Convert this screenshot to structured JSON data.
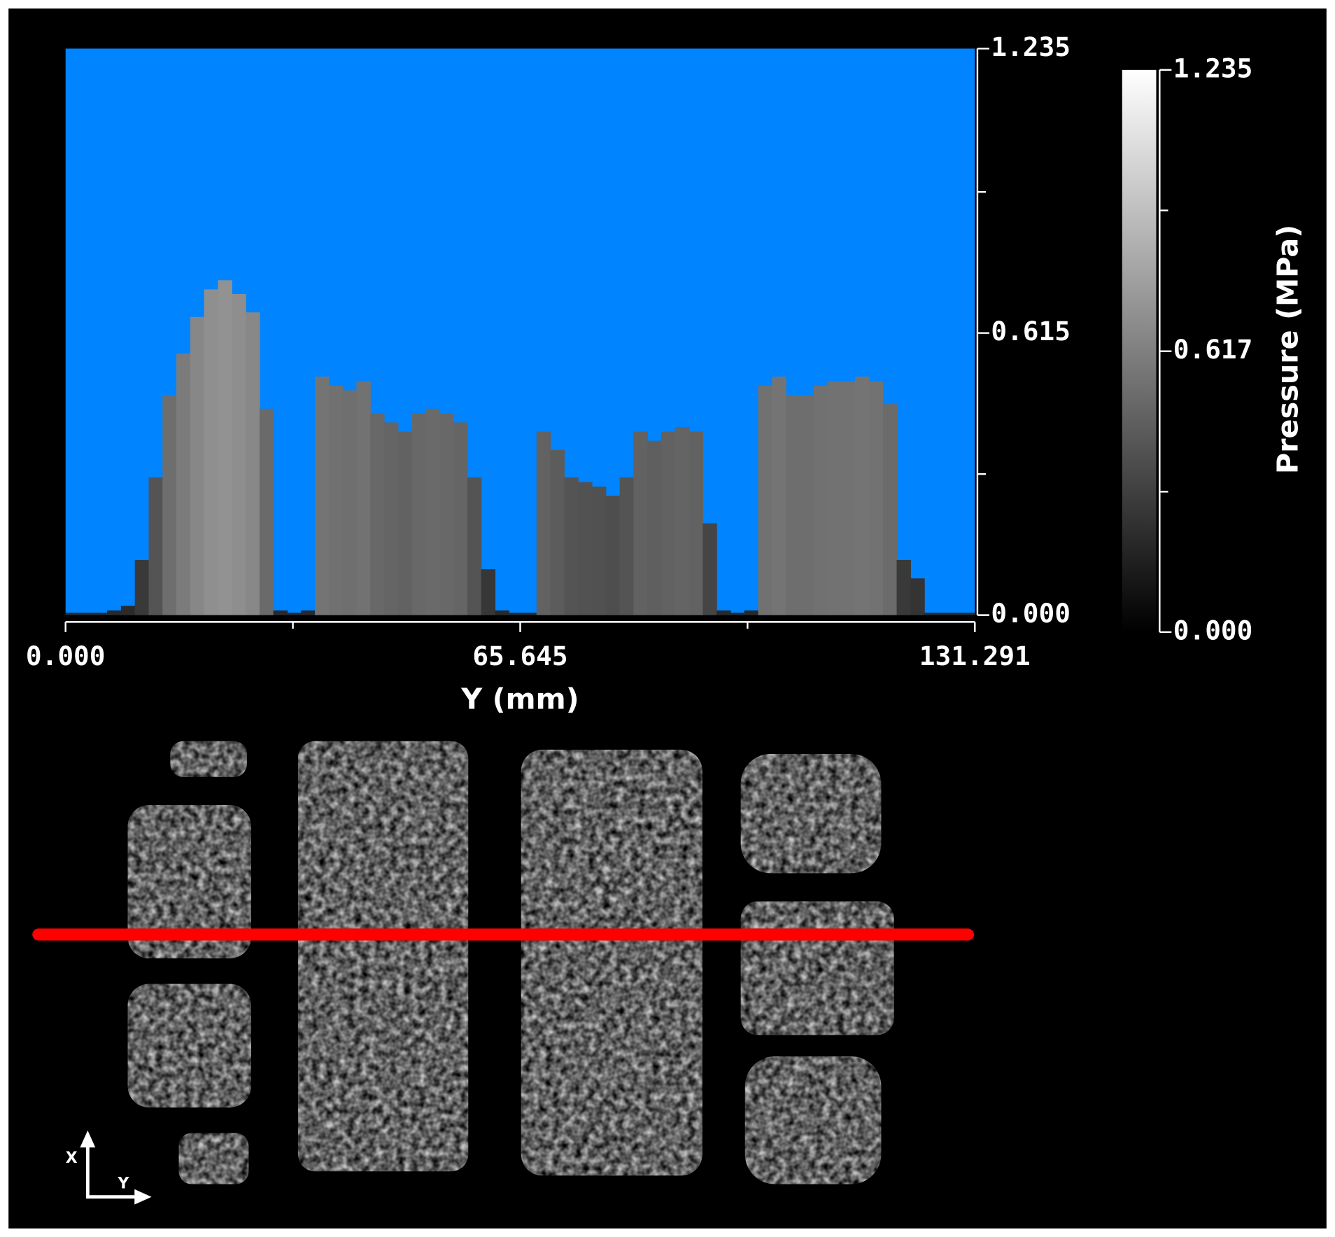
{
  "chart_data": {
    "type": "bar",
    "xlabel": "Y (mm)",
    "colorbar_label": "Pressure (MPa)",
    "background_color": "#0084ff",
    "x": [
      0,
      2,
      4,
      6,
      8,
      10,
      12,
      14,
      16,
      18,
      20,
      22,
      24,
      26,
      28,
      30,
      32,
      34,
      36,
      38,
      40,
      42,
      44,
      46,
      48,
      50,
      52,
      54,
      56,
      58,
      60,
      62,
      64,
      66,
      68,
      70,
      72,
      74,
      76,
      78,
      80,
      82,
      84,
      86,
      88,
      90,
      92,
      94,
      96,
      98,
      100,
      102,
      104,
      106,
      108,
      110,
      112,
      114,
      116,
      118,
      120,
      122,
      124,
      126,
      128,
      130
    ],
    "values": [
      0.005,
      0.005,
      0.005,
      0.01,
      0.02,
      0.12,
      0.3,
      0.48,
      0.57,
      0.65,
      0.71,
      0.73,
      0.7,
      0.66,
      0.45,
      0.01,
      0.005,
      0.01,
      0.52,
      0.5,
      0.49,
      0.51,
      0.44,
      0.42,
      0.4,
      0.44,
      0.45,
      0.44,
      0.42,
      0.3,
      0.1,
      0.01,
      0.005,
      0.005,
      0.4,
      0.36,
      0.3,
      0.29,
      0.28,
      0.26,
      0.3,
      0.4,
      0.38,
      0.4,
      0.41,
      0.4,
      0.2,
      0.01,
      0.005,
      0.01,
      0.5,
      0.52,
      0.48,
      0.48,
      0.5,
      0.51,
      0.51,
      0.52,
      0.51,
      0.46,
      0.12,
      0.08,
      0.005,
      0.005,
      0.005,
      0.005
    ],
    "xlim": [
      0,
      131.291
    ],
    "xticks": [
      {
        "value": 0,
        "label": "0.000"
      },
      65.645,
      131.291
    ],
    "x_minor_ticks": [
      32.823,
      98.468
    ],
    "ylim": [
      0,
      1.235
    ],
    "yticks": [
      {
        "value": 0,
        "label": "0.000"
      },
      0.615,
      1.235
    ],
    "y_minor_ticks": [
      0.3075,
      0.9225
    ],
    "colorbar_lim": [
      0,
      1.235
    ],
    "colorbar_ticks": [
      {
        "value": 0,
        "label": "0.000"
      },
      0.617,
      1.235
    ],
    "colorbar_minor_ticks": [
      0.3085,
      0.9263
    ]
  },
  "orientation": {
    "x_label": "X",
    "y_label": "Y"
  }
}
